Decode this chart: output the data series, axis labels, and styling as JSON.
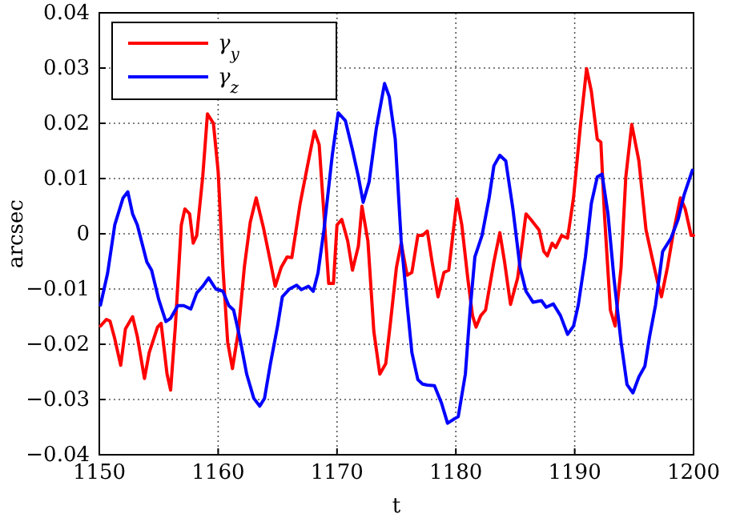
{
  "chart_data": {
    "type": "line",
    "xlabel": "t",
    "ylabel": "arcsec",
    "xlim": [
      1150,
      1200
    ],
    "ylim": [
      -0.04,
      0.04
    ],
    "xticks": [
      1150,
      1160,
      1170,
      1180,
      1190,
      1200
    ],
    "yticks": [
      -0.04,
      -0.03,
      -0.02,
      -0.01,
      0,
      0.01,
      0.02,
      0.03,
      0.04
    ],
    "grid": true,
    "legend": "top left",
    "line_style": "solid",
    "marker": "none",
    "series": [
      {
        "name": "γ$_{y}$",
        "color": "#ff0000",
        "x": [
          1150.1,
          1150.6,
          1150.9,
          1151.3,
          1151.8,
          1152.2,
          1152.8,
          1153.2,
          1153.8,
          1154.2,
          1154.9,
          1155.2,
          1155.7,
          1156.0,
          1156.4,
          1156.9,
          1157.2,
          1157.6,
          1157.9,
          1158.2,
          1158.7,
          1159.1,
          1159.6,
          1160.0,
          1160.4,
          1160.8,
          1161.2,
          1161.7,
          1162.2,
          1162.7,
          1163.2,
          1163.8,
          1164.4,
          1164.8,
          1165.3,
          1165.8,
          1166.2,
          1166.9,
          1167.6,
          1168.1,
          1168.5,
          1168.9,
          1169.3,
          1169.7,
          1170.0,
          1170.4,
          1170.9,
          1171.3,
          1171.8,
          1172.1,
          1172.6,
          1173.1,
          1173.6,
          1174.1,
          1174.5,
          1175.0,
          1175.4,
          1175.9,
          1176.3,
          1176.8,
          1177.2,
          1177.6,
          1178.0,
          1178.5,
          1179.0,
          1179.4,
          1180.1,
          1180.5,
          1181.0,
          1181.4,
          1181.7,
          1182.1,
          1182.5,
          1183.2,
          1183.7,
          1184.1,
          1184.6,
          1185.2,
          1185.9,
          1186.3,
          1187.0,
          1187.4,
          1187.7,
          1188.1,
          1188.4,
          1188.9,
          1189.4,
          1189.9,
          1190.5,
          1191.0,
          1191.4,
          1191.9,
          1192.2,
          1192.5,
          1193.0,
          1193.4,
          1193.9,
          1194.3,
          1194.8,
          1195.4,
          1196.0,
          1196.5,
          1197.0,
          1197.3,
          1197.8,
          1198.3,
          1198.9,
          1199.3,
          1199.8,
          1200
        ],
        "values": [
          -0.0167,
          -0.0155,
          -0.0158,
          -0.019,
          -0.0238,
          -0.0172,
          -0.015,
          -0.0186,
          -0.0262,
          -0.0215,
          -0.0169,
          -0.0162,
          -0.0254,
          -0.0283,
          -0.0167,
          0.0016,
          0.0045,
          0.0036,
          -0.0017,
          -0.0003,
          0.0103,
          0.0217,
          0.02,
          0.0113,
          -0.0061,
          -0.0196,
          -0.0244,
          -0.0177,
          -0.0061,
          0.0021,
          0.0065,
          0.0012,
          -0.0051,
          -0.0095,
          -0.0061,
          -0.0042,
          -0.0043,
          0.0055,
          0.0132,
          0.0186,
          0.0161,
          0.0036,
          -0.009,
          -0.009,
          0.0016,
          0.0026,
          -0.0013,
          -0.0066,
          -0.0022,
          0.005,
          -0.0013,
          -0.0177,
          -0.0254,
          -0.0235,
          -0.016,
          -0.0061,
          -0.0017,
          -0.0075,
          -0.007,
          -0.0003,
          -0.0003,
          0.0005,
          -0.0051,
          -0.0114,
          -0.007,
          -0.0066,
          0.0063,
          0.0016,
          -0.008,
          -0.0148,
          -0.0169,
          -0.0148,
          -0.0138,
          -0.0051,
          0.0002,
          -0.0051,
          -0.0128,
          -0.008,
          0.0036,
          0.0026,
          0.0007,
          -0.0032,
          -0.004,
          -0.0017,
          -0.0025,
          -0.0003,
          -0.0008,
          0.0065,
          0.02,
          0.0299,
          0.0258,
          0.0171,
          0.0166,
          0.0036,
          -0.0138,
          -0.0167,
          -0.0061,
          0.0103,
          0.0198,
          0.0132,
          0.0007,
          -0.0042,
          -0.009,
          -0.0114,
          -0.0061,
          0.0002,
          0.0065,
          0.0045,
          -0.0003,
          -0.0003
        ]
      },
      {
        "name": "γ$_{z}$",
        "color": "#0000ff",
        "x": [
          1150.1,
          1150.7,
          1151.3,
          1152.0,
          1152.4,
          1152.8,
          1153.2,
          1154.0,
          1154.4,
          1155.0,
          1155.6,
          1156.0,
          1156.6,
          1157.1,
          1157.7,
          1158.2,
          1158.7,
          1159.2,
          1159.8,
          1160.4,
          1160.9,
          1161.3,
          1161.8,
          1162.4,
          1163.0,
          1163.5,
          1163.9,
          1164.4,
          1165.0,
          1165.4,
          1166.0,
          1166.6,
          1167.0,
          1167.6,
          1168.0,
          1168.4,
          1168.9,
          1169.6,
          1170.1,
          1170.7,
          1171.3,
          1171.8,
          1172.2,
          1172.7,
          1173.3,
          1174.0,
          1174.4,
          1174.9,
          1175.4,
          1175.9,
          1176.3,
          1176.8,
          1177.2,
          1177.6,
          1178.2,
          1178.8,
          1179.3,
          1179.8,
          1180.2,
          1180.8,
          1181.2,
          1181.6,
          1182.2,
          1182.8,
          1183.2,
          1183.7,
          1184.2,
          1184.8,
          1185.4,
          1185.9,
          1186.5,
          1187.2,
          1187.6,
          1188.2,
          1188.8,
          1189.4,
          1189.9,
          1190.3,
          1190.9,
          1191.4,
          1191.9,
          1192.3,
          1192.8,
          1193.3,
          1193.9,
          1194.4,
          1194.9,
          1195.4,
          1195.9,
          1196.3,
          1196.8,
          1197.4,
          1198.1,
          1198.7,
          1199.2,
          1199.9
        ],
        "values": [
          -0.0129,
          -0.0071,
          0.0016,
          0.0065,
          0.0076,
          0.0036,
          0.0016,
          -0.0051,
          -0.0066,
          -0.0119,
          -0.0159,
          -0.0153,
          -0.013,
          -0.013,
          -0.0136,
          -0.0107,
          -0.0095,
          -0.008,
          -0.01,
          -0.0104,
          -0.013,
          -0.0138,
          -0.0186,
          -0.0254,
          -0.0298,
          -0.0312,
          -0.0298,
          -0.0235,
          -0.0167,
          -0.0114,
          -0.01,
          -0.0093,
          -0.0101,
          -0.0095,
          -0.0104,
          -0.0071,
          0.0007,
          0.0142,
          0.0219,
          0.0205,
          0.0152,
          0.0103,
          0.0057,
          0.0094,
          0.019,
          0.0272,
          0.0248,
          0.0171,
          -0.0013,
          -0.0128,
          -0.0215,
          -0.0264,
          -0.0272,
          -0.0274,
          -0.0275,
          -0.0307,
          -0.0343,
          -0.0336,
          -0.0331,
          -0.0254,
          -0.0138,
          -0.0042,
          -0.0003,
          0.0065,
          0.0123,
          0.0142,
          0.0132,
          0.0045,
          -0.0061,
          -0.0104,
          -0.0124,
          -0.0121,
          -0.0133,
          -0.0127,
          -0.0148,
          -0.0182,
          -0.0167,
          -0.0129,
          -0.0042,
          0.0055,
          0.0103,
          0.0108,
          0.0036,
          -0.008,
          -0.0196,
          -0.0273,
          -0.0288,
          -0.0259,
          -0.024,
          -0.0186,
          -0.0129,
          -0.0032,
          -0.0008,
          0.0026,
          0.007,
          0.0115
        ]
      }
    ]
  }
}
